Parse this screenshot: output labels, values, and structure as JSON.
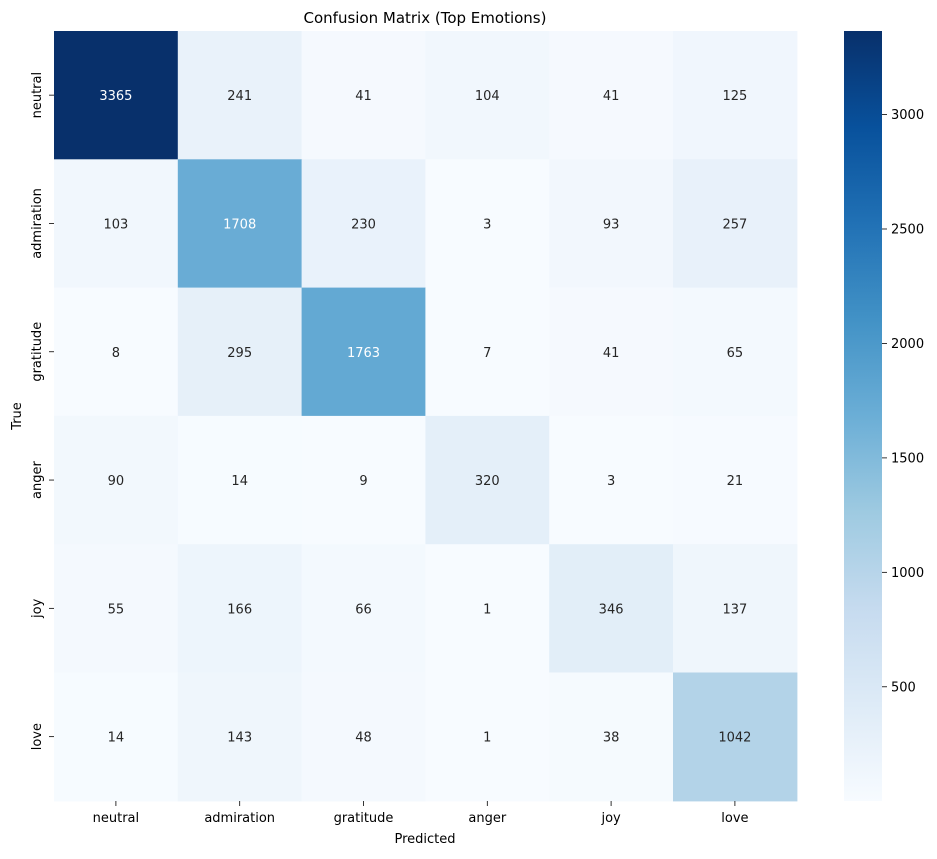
{
  "chart_data": {
    "type": "heatmap",
    "title": "Confusion Matrix (Top Emotions)",
    "xlabel": "Predicted",
    "ylabel": "True",
    "x_categories": [
      "neutral",
      "admiration",
      "gratitude",
      "anger",
      "joy",
      "love"
    ],
    "y_categories": [
      "neutral",
      "admiration",
      "gratitude",
      "anger",
      "joy",
      "love"
    ],
    "values": [
      [
        3365,
        241,
        41,
        104,
        41,
        125
      ],
      [
        103,
        1708,
        230,
        3,
        93,
        257
      ],
      [
        8,
        295,
        1763,
        7,
        41,
        65
      ],
      [
        90,
        14,
        9,
        320,
        3,
        21
      ],
      [
        55,
        166,
        66,
        1,
        346,
        137
      ],
      [
        14,
        143,
        48,
        1,
        38,
        1042
      ]
    ],
    "colormap": "Blues",
    "colorbar": {
      "vmin": 1,
      "vmax": 3365,
      "ticks": [
        500,
        1000,
        1500,
        2000,
        2500,
        3000
      ]
    },
    "grid": false,
    "annotations": "cell values shown"
  }
}
